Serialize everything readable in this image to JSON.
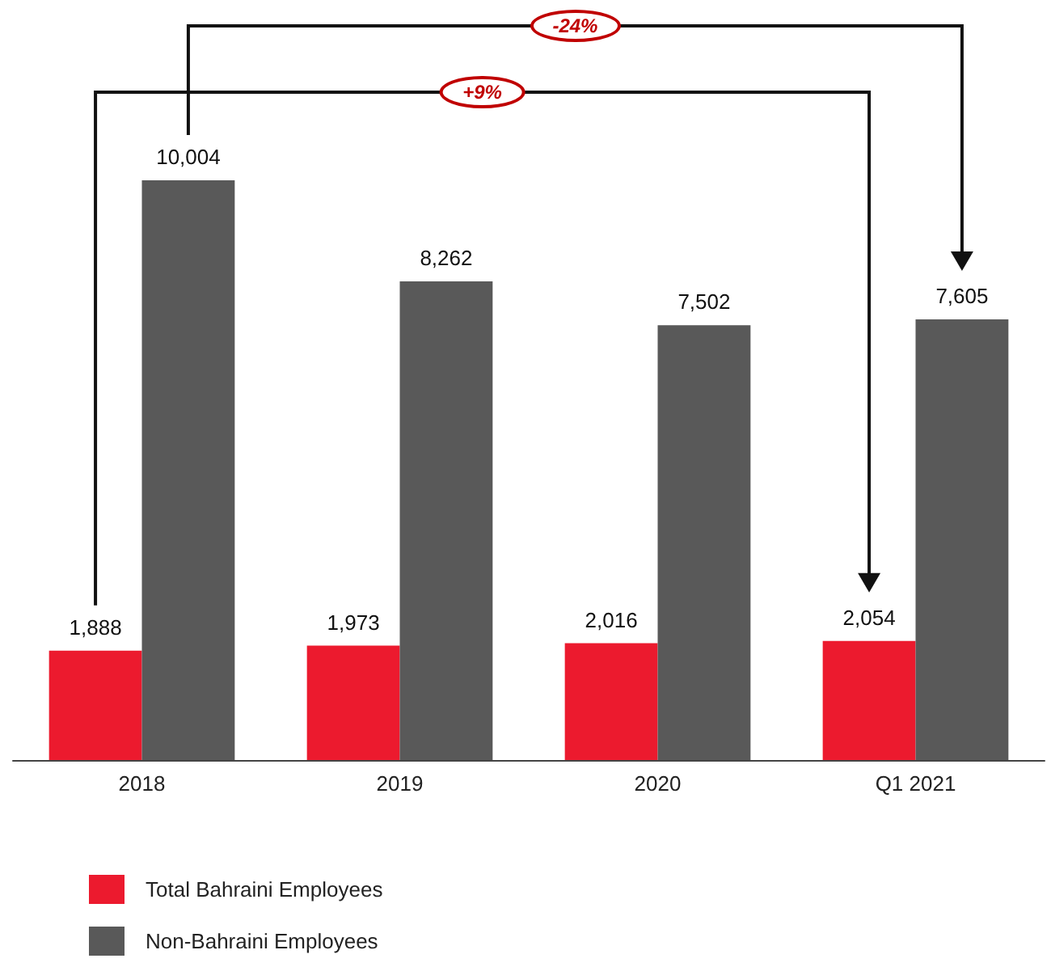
{
  "chart_data": {
    "type": "bar",
    "categories": [
      "2018",
      "2019",
      "2020",
      "Q1 2021"
    ],
    "series": [
      {
        "name": "Total Bahraini Employees",
        "color": "#ec1a2e",
        "values": [
          1888,
          1973,
          2016,
          2054
        ],
        "value_labels": [
          "1,888",
          "1,973",
          "2,016",
          "2,054"
        ]
      },
      {
        "name": "Non-Bahraini Employees",
        "color": "#595959",
        "values": [
          10004,
          8262,
          7502,
          7605
        ],
        "value_labels": [
          "10,004",
          "8,262",
          "7,502",
          "7,605"
        ]
      }
    ],
    "legend": "bottom left",
    "annotations": [
      "-24%",
      "+9%"
    ]
  }
}
